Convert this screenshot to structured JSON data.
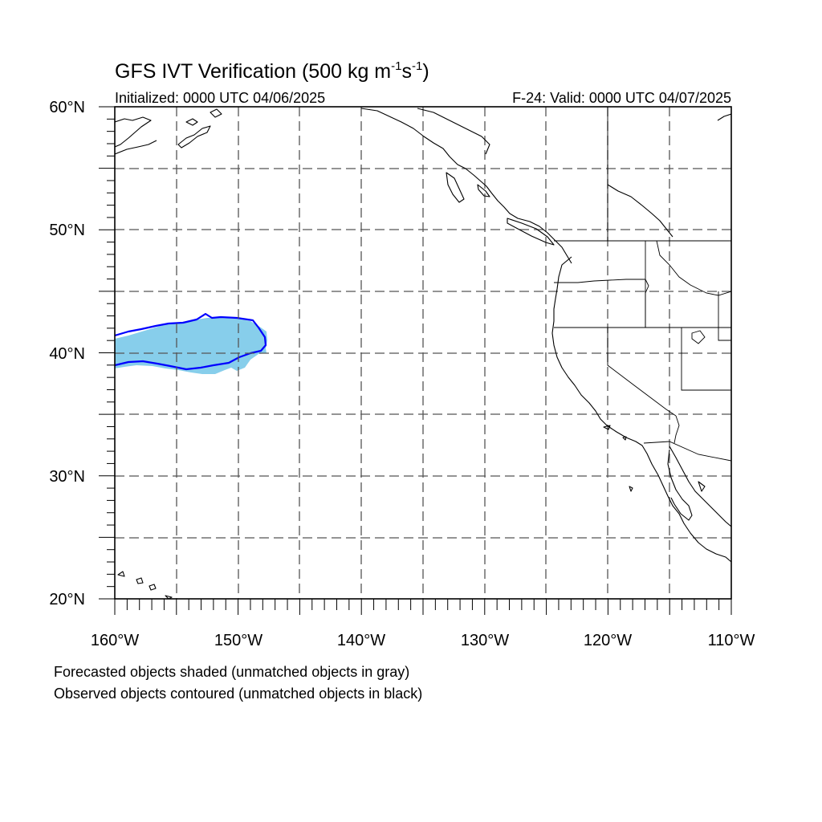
{
  "title": {
    "main": "GFS IVT Verification (500 kg m",
    "sup1": "-1",
    "mid": "s",
    "sup2": "-1",
    "close": ")"
  },
  "initialized": "Initialized: 0000 UTC 04/06/2025",
  "valid": "F-24: Valid: 0000 UTC 04/07/2025",
  "axes": {
    "lat_labels": [
      "60°N",
      "50°N",
      "40°N",
      "30°N",
      "20°N"
    ],
    "lon_labels": [
      "160°W",
      "150°W",
      "140°W",
      "130°W",
      "120°W",
      "110°W"
    ],
    "lat_range": [
      20,
      60
    ],
    "lon_range": [
      -160,
      -110
    ],
    "grid_interval_deg": 5,
    "grid": true
  },
  "legend": {
    "line1": "Forecasted objects shaded (unmatched objects in gray)",
    "line2": "Observed objects contoured (unmatched objects in black)"
  },
  "colors": {
    "forecast_fill": "#87ceeb",
    "observed_contour": "#0000ff",
    "coastline": "#000000",
    "grid": "#555555"
  },
  "objects": {
    "forecast": {
      "matched": true,
      "lat_range": [
        37.8,
        42.5
      ],
      "lon_range": [
        -160,
        -147.5
      ]
    },
    "observed": {
      "matched": true,
      "lat_range": [
        38.7,
        43.1
      ],
      "lon_range": [
        -160,
        -147.6
      ]
    }
  }
}
